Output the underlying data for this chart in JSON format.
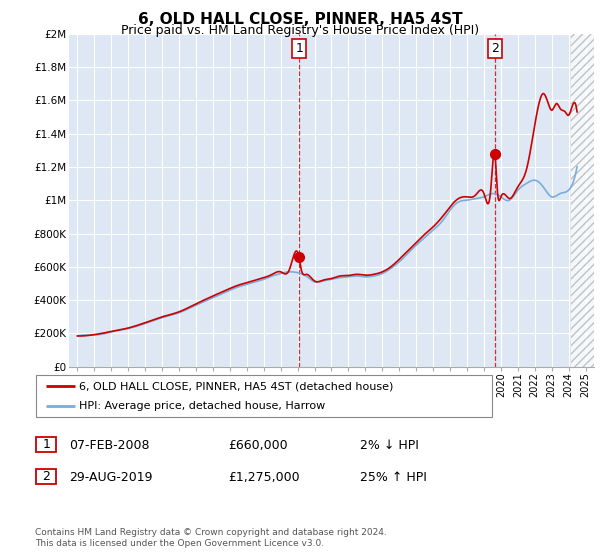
{
  "title": "6, OLD HALL CLOSE, PINNER, HA5 4ST",
  "subtitle": "Price paid vs. HM Land Registry's House Price Index (HPI)",
  "legend_line1": "6, OLD HALL CLOSE, PINNER, HA5 4ST (detached house)",
  "legend_line2": "HPI: Average price, detached house, Harrow",
  "transaction1_date": "07-FEB-2008",
  "transaction1_price": "£660,000",
  "transaction1_hpi": "2% ↓ HPI",
  "transaction1_year": 2008.1,
  "transaction1_value": 660000,
  "transaction2_date": "29-AUG-2019",
  "transaction2_price": "£1,275,000",
  "transaction2_hpi": "25% ↑ HPI",
  "transaction2_year": 2019.65,
  "transaction2_value": 1275000,
  "footer": "Contains HM Land Registry data © Crown copyright and database right 2024.\nThis data is licensed under the Open Government Licence v3.0.",
  "ylim": [
    0,
    2000000
  ],
  "xlim_start": 1994.5,
  "xlim_end": 2025.5,
  "line_color_property": "#cc0000",
  "line_color_hpi": "#7aaddb",
  "background_color": "#dde8f4",
  "grid_color": "#ffffff",
  "transaction_marker_color": "#cc0000",
  "dashed_line_color": "#cc0000",
  "hatch_color": "#bbbbbb",
  "hatch_start": 2024.17
}
